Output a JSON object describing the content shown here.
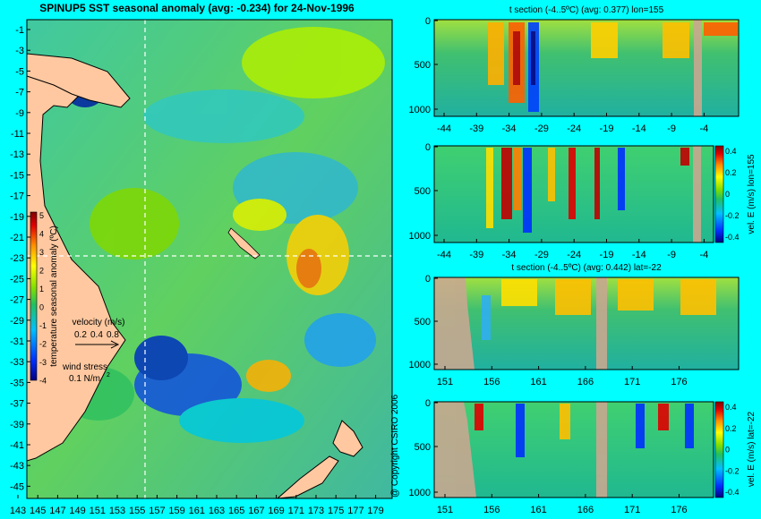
{
  "title": "SPINUP5 SST seasonal anomaly (avg: -0.234) for 24-Nov-1996",
  "copyright": "@ Copyright CSIRO 2006",
  "chart_data": [
    {
      "type": "heatmap",
      "name": "map",
      "title": "SPINUP5 SST seasonal anomaly (avg: -0.234) for 24-Nov-1996",
      "x_ticks": [
        "143",
        "145",
        "147",
        "149",
        "151",
        "153",
        "155",
        "157",
        "159",
        "161",
        "163",
        "165",
        "167",
        "169",
        "171",
        "173",
        "175",
        "177",
        "179"
      ],
      "y_ticks": [
        "-1",
        "-3",
        "-5",
        "-7",
        "-9",
        "-11",
        "-13",
        "-15",
        "-17",
        "-19",
        "-21",
        "-23",
        "-25",
        "-27",
        "-29",
        "-31",
        "-33",
        "-35",
        "-37",
        "-39",
        "-41",
        "-43",
        "-45"
      ],
      "colorbar": {
        "label": "temperature seasonal anomaly (ºC)",
        "ticks": [
          "5",
          "4",
          "3",
          "2",
          "1",
          "0",
          "-1",
          "-2",
          "-3",
          "-4"
        ],
        "range": [
          -4,
          5
        ]
      },
      "legend": {
        "velocity_label": "velocity (m/s)",
        "velocity_ticks": [
          "0.2",
          "0.4",
          "0.8"
        ],
        "wind_label": "wind stress",
        "wind_value": "0.1 N/m"
      },
      "crosshair": {
        "lon": 155,
        "lat": -22
      }
    },
    {
      "type": "heatmap",
      "name": "t-section-lon",
      "title": "t section (-4..5ºC) (avg: 0.377) lon=155",
      "x_ticks": [
        "-44",
        "-39",
        "-34",
        "-29",
        "-24",
        "-19",
        "-14",
        "-9",
        "-4"
      ],
      "y_ticks": [
        "0",
        "500",
        "1000"
      ]
    },
    {
      "type": "heatmap",
      "name": "vel-section-lon",
      "title": "",
      "x_ticks": [
        "-44",
        "-39",
        "-34",
        "-29",
        "-24",
        "-19",
        "-14",
        "-9",
        "-4"
      ],
      "y_ticks": [
        "0",
        "500",
        "1000"
      ],
      "colorbar": {
        "label": "vel. E (m/s) lon=155",
        "ticks": [
          "0.4",
          "0.2",
          "0",
          "-0.2",
          "-0.4"
        ]
      }
    },
    {
      "type": "heatmap",
      "name": "t-section-lat",
      "title": "t section (-4..5ºC) (avg: 0.442) lat=-22",
      "x_ticks": [
        "151",
        "156",
        "161",
        "166",
        "171",
        "176"
      ],
      "y_ticks": [
        "0",
        "500",
        "1000"
      ]
    },
    {
      "type": "heatmap",
      "name": "vel-section-lat",
      "title": "",
      "x_ticks": [
        "151",
        "156",
        "161",
        "166",
        "171",
        "176"
      ],
      "y_ticks": [
        "0",
        "500",
        "1000"
      ],
      "colorbar": {
        "label": "vel. E (m/s) lat=-22",
        "ticks": [
          "0.4",
          "0.2",
          "0",
          "-0.2",
          "-0.4"
        ]
      }
    }
  ]
}
